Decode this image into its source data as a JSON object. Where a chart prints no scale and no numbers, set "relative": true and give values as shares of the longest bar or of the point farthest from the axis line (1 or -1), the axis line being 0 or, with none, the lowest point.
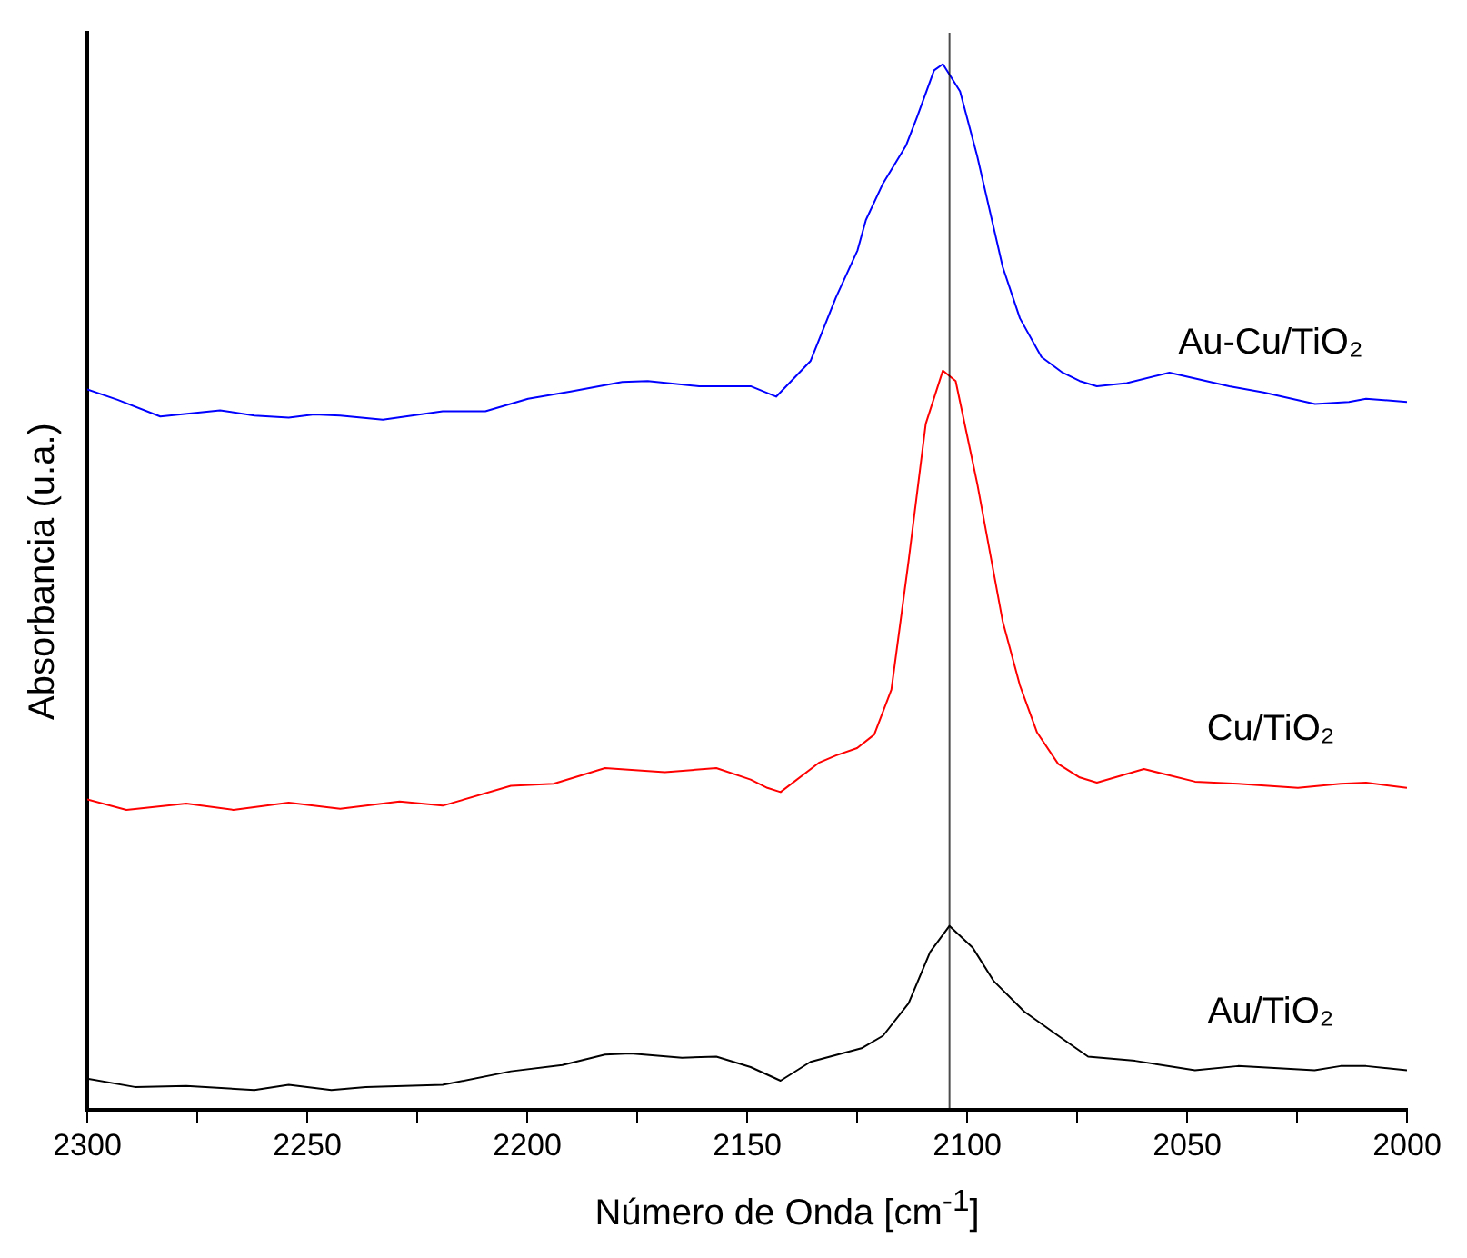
{
  "chart_data": {
    "type": "line",
    "xlabel": "Número de Onda  [cm$^{-1}$]",
    "ylabel": "Absorbancia (u.a.)",
    "relative": true,
    "xlim": [
      2300,
      2000
    ],
    "xticks": [
      2300,
      {
        "value": 2275,
        "label": null
      },
      2250,
      {
        "value": 2225,
        "label": null
      },
      2200,
      {
        "value": 2175,
        "label": null
      },
      2150,
      {
        "value": 2125,
        "label": null
      },
      2100,
      {
        "value": 2075,
        "label": null
      },
      2050,
      {
        "value": 2025,
        "label": null
      },
      2000
    ],
    "grid": false,
    "legend": false,
    "marker": "none",
    "line_style": "solid",
    "ref_lines": [
      {
        "axis": "x",
        "value": 2104,
        "color": "#000000"
      }
    ],
    "series": [
      {
        "name": "Au-Cu/TiO₂",
        "color": "#0000ff",
        "x": [
          2300,
          2293.1,
          2283.4,
          2269.8,
          2262,
          2254.2,
          2248.4,
          2242.5,
          2232.8,
          2219.2,
          2209.5,
          2199.8,
          2190.1,
          2178.4,
          2172.6,
          2160.9,
          2149.2,
          2143.4,
          2135.6,
          2129.8,
          2124.9,
          2123,
          2119.1,
          2113.9,
          2111.4,
          2107.5,
          2105.5,
          2101.6,
          2097.7,
          2091.9,
          2088,
          2083.1,
          2078.3,
          2074.4,
          2070.5,
          2063.7,
          2054,
          2040.4,
          2032.6,
          2020.9,
          2013.2,
          2009.3,
          2000
        ],
        "values": [
          0.689,
          0.679,
          0.663,
          0.669,
          0.664,
          0.662,
          0.665,
          0.664,
          0.66,
          0.668,
          0.668,
          0.68,
          0.687,
          0.696,
          0.697,
          0.692,
          0.692,
          0.682,
          0.716,
          0.777,
          0.822,
          0.851,
          0.886,
          0.922,
          0.949,
          0.994,
          1.0,
          0.974,
          0.912,
          0.806,
          0.757,
          0.72,
          0.705,
          0.697,
          0.692,
          0.695,
          0.705,
          0.692,
          0.686,
          0.675,
          0.677,
          0.68,
          0.677
        ]
      },
      {
        "name": "Cu/TiO₂",
        "color": "#ff0000",
        "x": [
          2300,
          2291.1,
          2277.5,
          2266.8,
          2254.2,
          2242.5,
          2229,
          2219.2,
          2203.7,
          2194,
          2182.3,
          2168.7,
          2157,
          2149.2,
          2145.4,
          2142.4,
          2133.7,
          2129.8,
          2125,
          2121.1,
          2117.2,
          2113.3,
          2109.4,
          2105.5,
          2102.6,
          2097.7,
          2091.9,
          2088,
          2084.1,
          2079.3,
          2074.4,
          2070.5,
          2059.8,
          2048.2,
          2038.4,
          2024.8,
          2015.1,
          2009.3,
          2000
        ],
        "values": [
          0.297,
          0.287,
          0.293,
          0.287,
          0.294,
          0.288,
          0.295,
          0.291,
          0.31,
          0.312,
          0.327,
          0.323,
          0.327,
          0.316,
          0.308,
          0.304,
          0.332,
          0.339,
          0.346,
          0.359,
          0.402,
          0.525,
          0.656,
          0.707,
          0.697,
          0.599,
          0.467,
          0.406,
          0.361,
          0.331,
          0.318,
          0.313,
          0.326,
          0.314,
          0.312,
          0.308,
          0.312,
          0.313,
          0.308
        ]
      },
      {
        "name": "Au/TiO₂",
        "color": "#000000",
        "x": [
          2300,
          2289.2,
          2277.5,
          2262,
          2254.2,
          2244.5,
          2236.7,
          2219.2,
          2203.7,
          2192,
          2182.3,
          2176.5,
          2164.8,
          2157,
          2149.2,
          2142.4,
          2135.6,
          2124,
          2119.1,
          2113.3,
          2108.4,
          2104,
          2098.7,
          2093.9,
          2087,
          2079.3,
          2072.5,
          2061.8,
          2048.2,
          2038.4,
          2021,
          2015.1,
          2009.3,
          2000
        ],
        "values": [
          0.03,
          0.022,
          0.023,
          0.019,
          0.024,
          0.019,
          0.022,
          0.024,
          0.037,
          0.043,
          0.053,
          0.054,
          0.05,
          0.051,
          0.041,
          0.028,
          0.046,
          0.059,
          0.071,
          0.102,
          0.151,
          0.176,
          0.155,
          0.123,
          0.094,
          0.071,
          0.051,
          0.047,
          0.038,
          0.042,
          0.038,
          0.042,
          0.042,
          0.038
        ]
      }
    ]
  }
}
